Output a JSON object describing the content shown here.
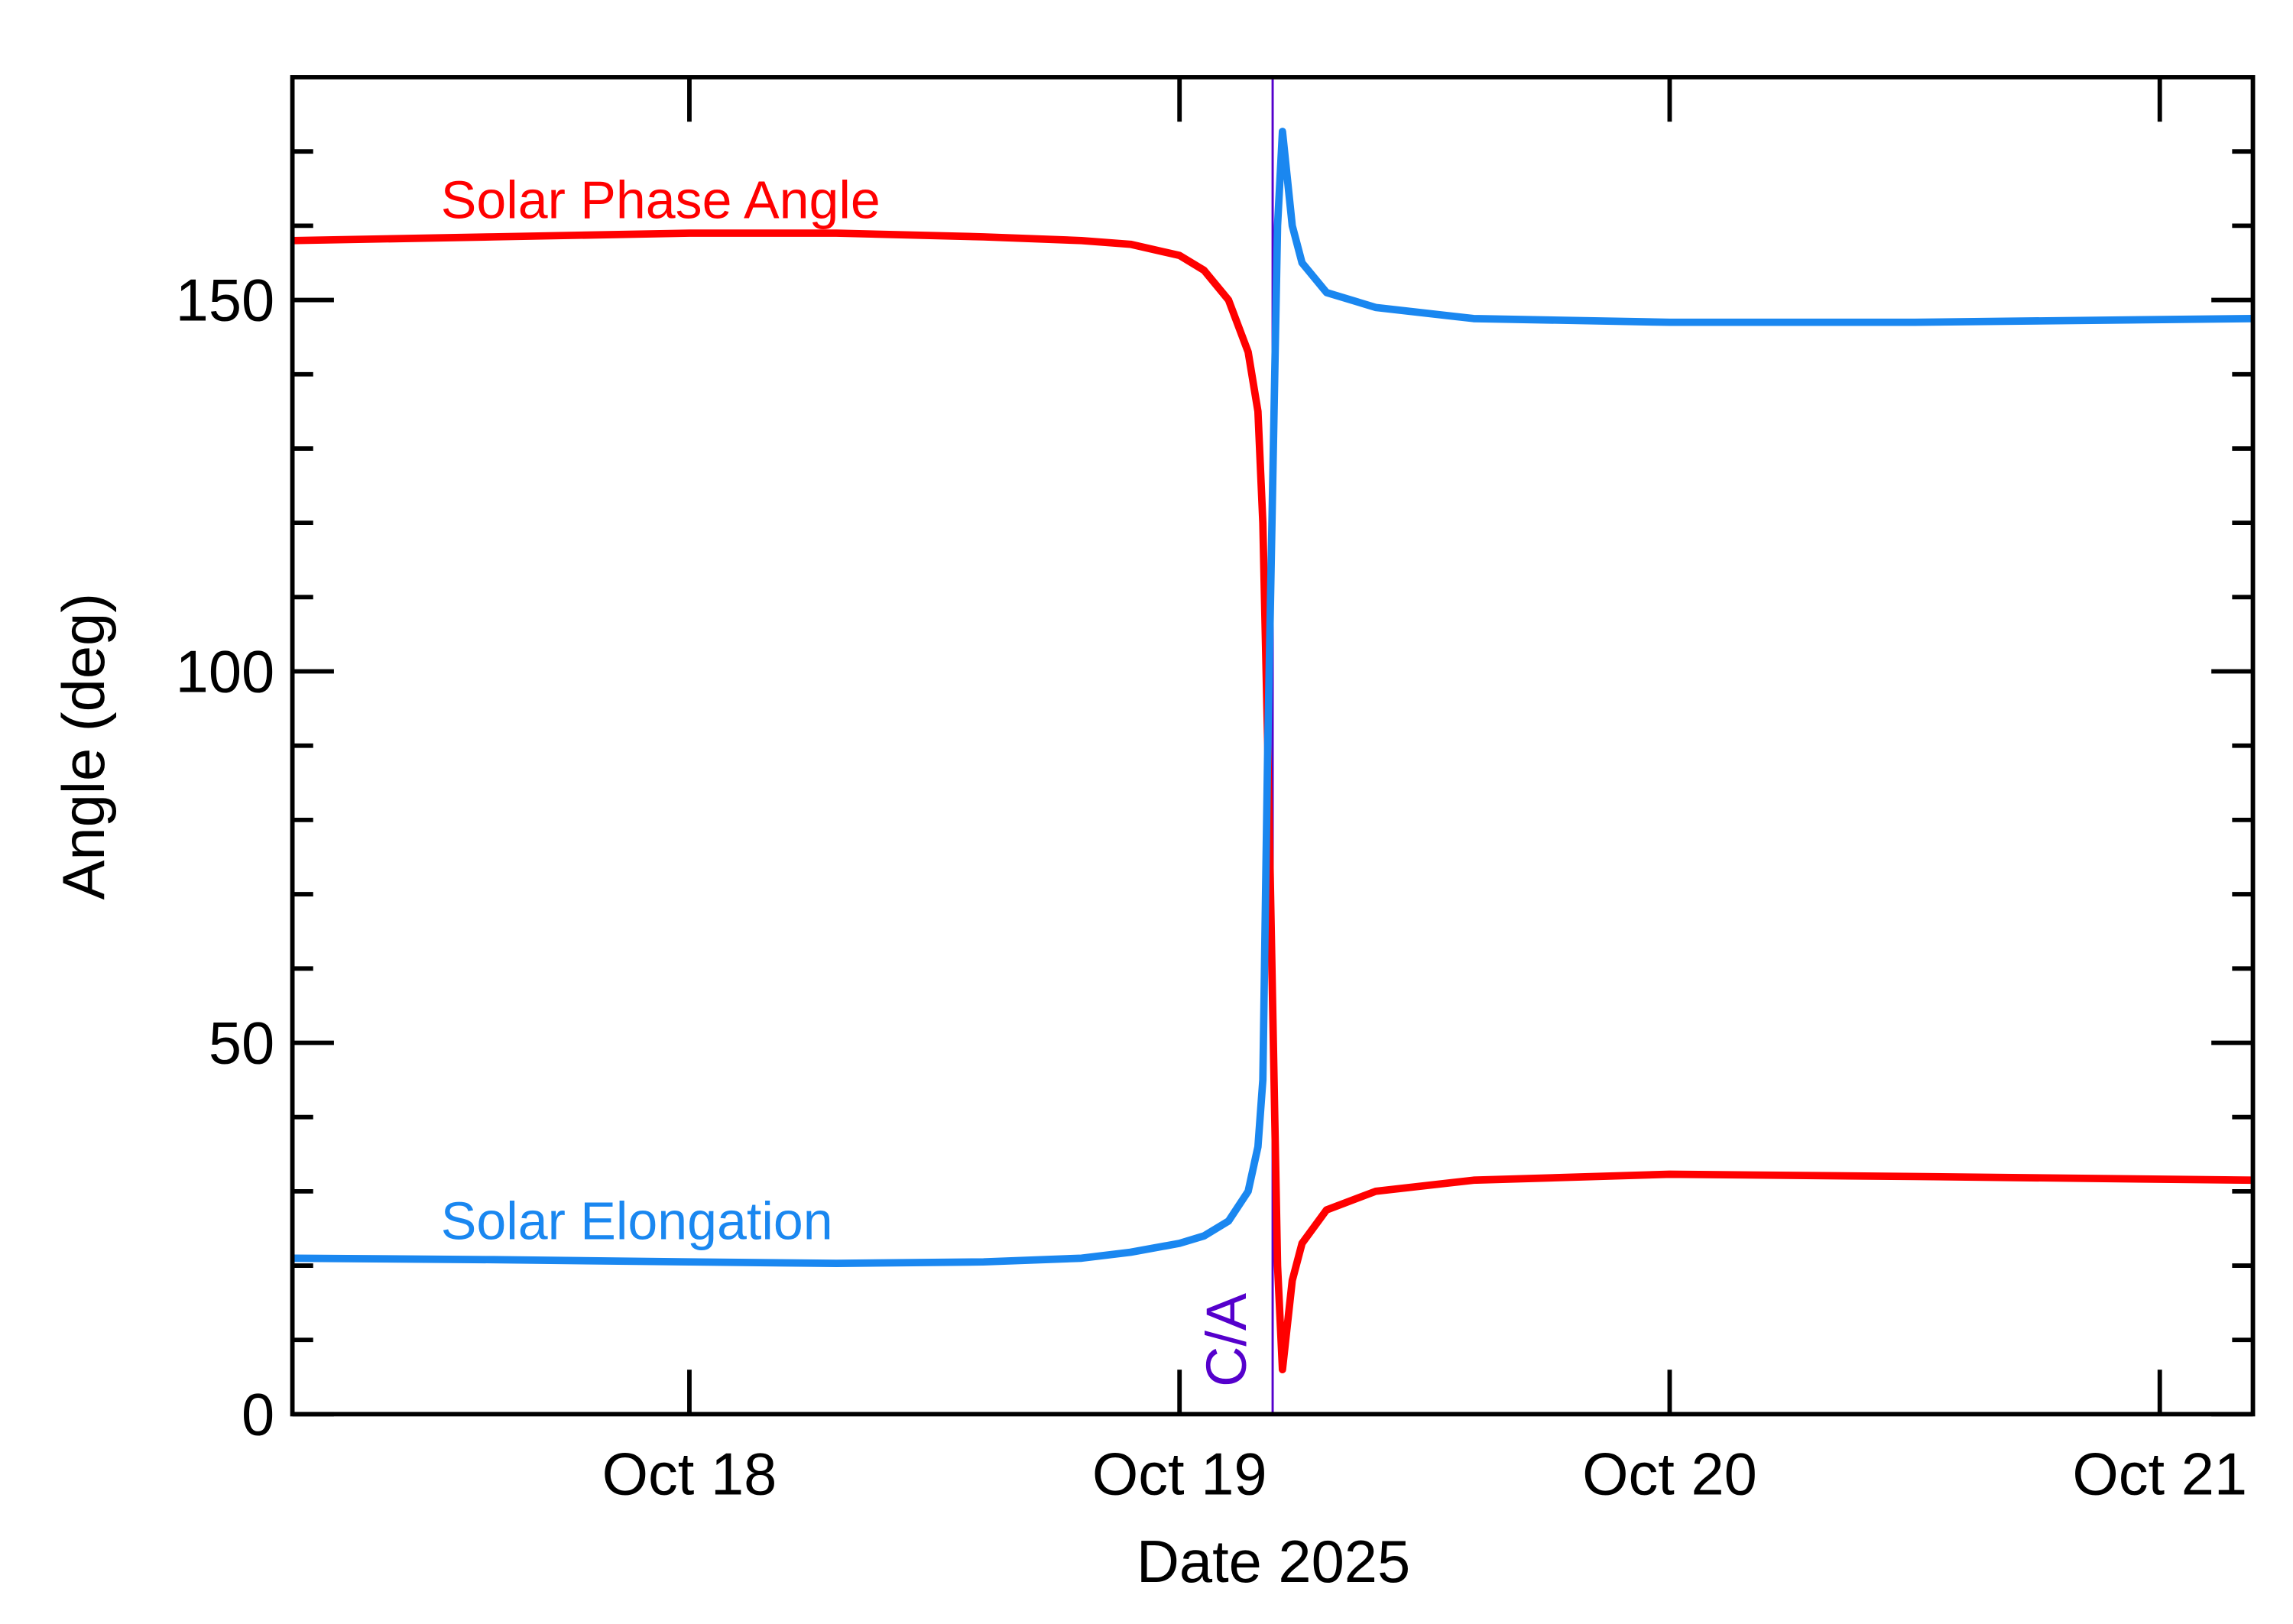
{
  "chart_data": {
    "type": "line",
    "x_label": "Date 2025",
    "y_label": "Angle (deg)",
    "annotation": "C/A",
    "annotation_x": 19.19,
    "annotation_color": "#5500cc",
    "xlim": [
      17.19,
      21.19
    ],
    "xticks": [
      {
        "value": 18,
        "label": "Oct 18"
      },
      {
        "value": 19,
        "label": "Oct 19"
      },
      {
        "value": 20,
        "label": "Oct 20"
      },
      {
        "value": 21,
        "label": "Oct 21"
      }
    ],
    "ylim": [
      0,
      180
    ],
    "yticks": [
      0,
      50,
      100,
      150
    ],
    "yminorticks": [
      10,
      20,
      30,
      40,
      60,
      70,
      80,
      90,
      110,
      120,
      130,
      140,
      160,
      170
    ],
    "x": [
      17.19,
      17.6,
      18.0,
      18.3,
      18.6,
      18.8,
      18.9,
      19.0,
      19.05,
      19.1,
      19.14,
      19.16,
      19.17,
      19.18,
      19.2,
      19.21,
      19.23,
      19.25,
      19.3,
      19.4,
      19.6,
      20.0,
      20.5,
      21.19
    ],
    "series": [
      {
        "name": "Solar Phase Angle",
        "color": "#ff0000",
        "values": [
          158,
          158.5,
          159,
          159,
          158.5,
          158,
          157.5,
          156,
          154,
          150,
          143,
          135,
          120,
          90,
          20,
          6,
          18,
          23,
          27.5,
          30,
          31.5,
          32.3,
          32,
          31.5
        ]
      },
      {
        "name": "Solar Elongation",
        "color": "#1a87f0",
        "values": [
          21,
          20.8,
          20.5,
          20.3,
          20.5,
          21,
          21.8,
          23,
          24,
          26,
          30,
          36,
          45,
          90,
          160,
          172.7,
          160,
          155,
          151,
          149,
          147.5,
          147,
          147,
          147.5
        ]
      }
    ]
  }
}
